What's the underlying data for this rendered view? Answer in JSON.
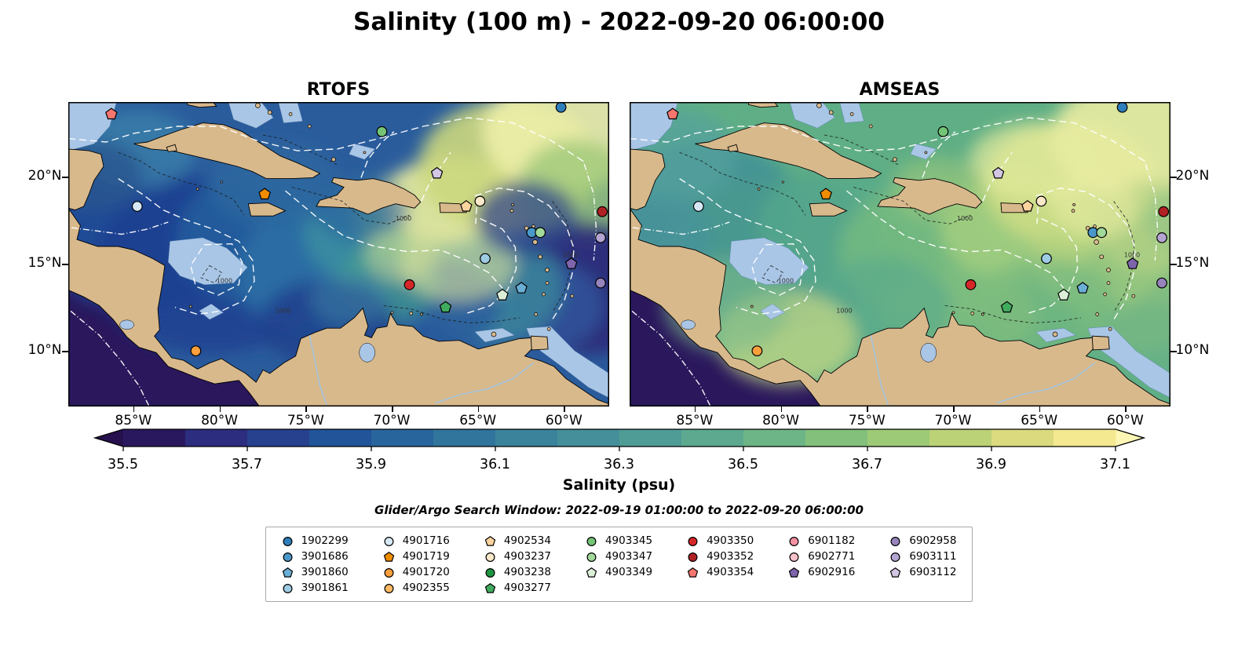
{
  "title": "Salinity (100 m) - 2022-09-20 06:00:00",
  "panels": [
    {
      "title": "RTOFS",
      "fieldKey": "rtofs"
    },
    {
      "title": "AMSEAS",
      "fieldKey": "amseas"
    }
  ],
  "axes": {
    "lon_tick_labels": [
      "85°W",
      "80°W",
      "75°W",
      "70°W",
      "65°W",
      "60°W"
    ],
    "lon_tick_values": [
      -85,
      -80,
      -75,
      -70,
      -65,
      -60
    ],
    "lat_tick_labels": [
      "20°N",
      "15°N",
      "10°N"
    ],
    "lat_tick_values": [
      20,
      15,
      10
    ],
    "lon_range": [
      -88.8,
      -57.4
    ],
    "lat_range": [
      6.8,
      24.3
    ]
  },
  "colorbar": {
    "label": "Salinity (psu)",
    "tick_labels": [
      "35.5",
      "35.7",
      "35.9",
      "36.1",
      "36.3",
      "36.5",
      "36.7",
      "36.9",
      "37.1"
    ],
    "tick_values": [
      35.5,
      35.7,
      35.9,
      36.1,
      36.3,
      36.5,
      36.7,
      36.9,
      37.1
    ],
    "value_range": [
      35.5,
      37.1
    ],
    "segment_colors": [
      "#2a185f",
      "#2c2d7f",
      "#27418f",
      "#215498",
      "#28659c",
      "#31749c",
      "#3a839b",
      "#448f9a",
      "#4f9c96",
      "#5ca98f",
      "#6db586",
      "#83c07c",
      "#9dca76",
      "#bcd276",
      "#dcda7f",
      "#f4e991"
    ],
    "under_color": "#27104e",
    "over_color": "#fdf6b5"
  },
  "search_window": "Glider/Argo Search Window: 2022-09-19 01:00:00 to 2022-09-20 06:00:00",
  "legend_columns": [
    [
      "1902299",
      "3901686",
      "3901860",
      "3901861"
    ],
    [
      "4901716",
      "4901719",
      "4901720",
      "4902355"
    ],
    [
      "4902534",
      "4903237",
      "4903238",
      "4903277"
    ],
    [
      "4903345",
      "4903347",
      "4903349"
    ],
    [
      "4903350",
      "4903352",
      "4903354"
    ],
    [
      "6901182",
      "6902771",
      "6902916"
    ],
    [
      "6902958",
      "6903111",
      "6903112"
    ]
  ],
  "chart_data": {
    "type": "heatmap",
    "subtype": "side-by-side geographic salinity model comparison",
    "title": "Salinity (100 m) - 2022-09-20 06:00:00",
    "variable": "Salinity (psu)",
    "depth_m": 100,
    "valid_time": "2022-09-20 06:00:00",
    "models": [
      "RTOFS",
      "AMSEAS"
    ],
    "colorbar_tick_values": [
      35.5,
      35.7,
      35.9,
      36.1,
      36.3,
      36.5,
      36.7,
      36.9,
      37.1
    ],
    "colorbar_range": [
      35.5,
      37.1
    ],
    "lon_tick_labels": [
      "85°W",
      "80°W",
      "75°W",
      "70°W",
      "65°W",
      "60°W"
    ],
    "lat_tick_labels": [
      "20°N",
      "15°N",
      "10°N"
    ],
    "map_extent": {
      "lon": [
        -88.8,
        -57.4
      ],
      "lat": [
        6.8,
        24.3
      ]
    },
    "glider_argo_search_window": "2022-09-19 01:00:00 to 2022-09-20 06:00:00",
    "platforms": [
      {
        "id": "1902299",
        "marker": "circle",
        "color": "#2e7ebc",
        "lon": -60.2,
        "lat": 24.0
      },
      {
        "id": "3901686",
        "marker": "circle",
        "color": "#4a98c9",
        "lon": -61.9,
        "lat": 16.8
      },
      {
        "id": "3901860",
        "marker": "pentagon",
        "color": "#6aaed6",
        "lon": -62.5,
        "lat": 13.6
      },
      {
        "id": "3901861",
        "marker": "circle",
        "color": "#9dcbe4",
        "lon": -64.6,
        "lat": 15.3
      },
      {
        "id": "4901716",
        "marker": "circle",
        "color": "#d6e8f5",
        "lon": -84.8,
        "lat": 18.3
      },
      {
        "id": "4901719",
        "marker": "pentagon",
        "color": "#f08c00",
        "lon": -77.4,
        "lat": 19.0
      },
      {
        "id": "4901720",
        "marker": "circle",
        "color": "#fa9f3c",
        "lon": -81.4,
        "lat": 10.0
      },
      {
        "id": "4902355",
        "marker": "circle",
        "color": "#fdb863",
        "lon": null,
        "lat": null
      },
      {
        "id": "4902534",
        "marker": "pentagon",
        "color": "#fdd49e",
        "lon": -65.7,
        "lat": 18.3
      },
      {
        "id": "4903237",
        "marker": "circle",
        "color": "#f9e8c9",
        "lon": -64.9,
        "lat": 18.6
      },
      {
        "id": "4903238",
        "marker": "circle",
        "color": "#1d9641",
        "lon": null,
        "lat": null
      },
      {
        "id": "4903277",
        "marker": "pentagon",
        "color": "#41ab5d",
        "lon": -66.9,
        "lat": 12.5
      },
      {
        "id": "4903345",
        "marker": "circle",
        "color": "#74c476",
        "lon": -70.6,
        "lat": 22.6
      },
      {
        "id": "4903347",
        "marker": "circle",
        "color": "#a1d99b",
        "lon": -61.4,
        "lat": 16.8
      },
      {
        "id": "4903349",
        "marker": "pentagon",
        "color": "#dcefd8",
        "lon": -63.6,
        "lat": 13.2
      },
      {
        "id": "4903350",
        "marker": "circle",
        "color": "#d62728",
        "lon": -69.0,
        "lat": 13.8
      },
      {
        "id": "4903352",
        "marker": "circle",
        "color": "#b02125",
        "lon": -57.8,
        "lat": 18.0
      },
      {
        "id": "4903354",
        "marker": "pentagon",
        "color": "#f4766e",
        "lon": -86.3,
        "lat": 23.6
      },
      {
        "id": "6901182",
        "marker": "circle",
        "color": "#f590a1",
        "lon": null,
        "lat": null
      },
      {
        "id": "6902771",
        "marker": "circle",
        "color": "#f9c2cb",
        "lon": null,
        "lat": null
      },
      {
        "id": "6902916",
        "marker": "pentagon",
        "color": "#7e64ab",
        "lon": -59.6,
        "lat": 15.0
      },
      {
        "id": "6902958",
        "marker": "circle",
        "color": "#9784bd",
        "lon": -57.9,
        "lat": 13.9
      },
      {
        "id": "6903111",
        "marker": "circle",
        "color": "#b4a4d1",
        "lon": -57.9,
        "lat": 16.5
      },
      {
        "id": "6903112",
        "marker": "pentagon",
        "color": "#d3c6e5",
        "lon": -67.4,
        "lat": 20.2
      }
    ]
  }
}
